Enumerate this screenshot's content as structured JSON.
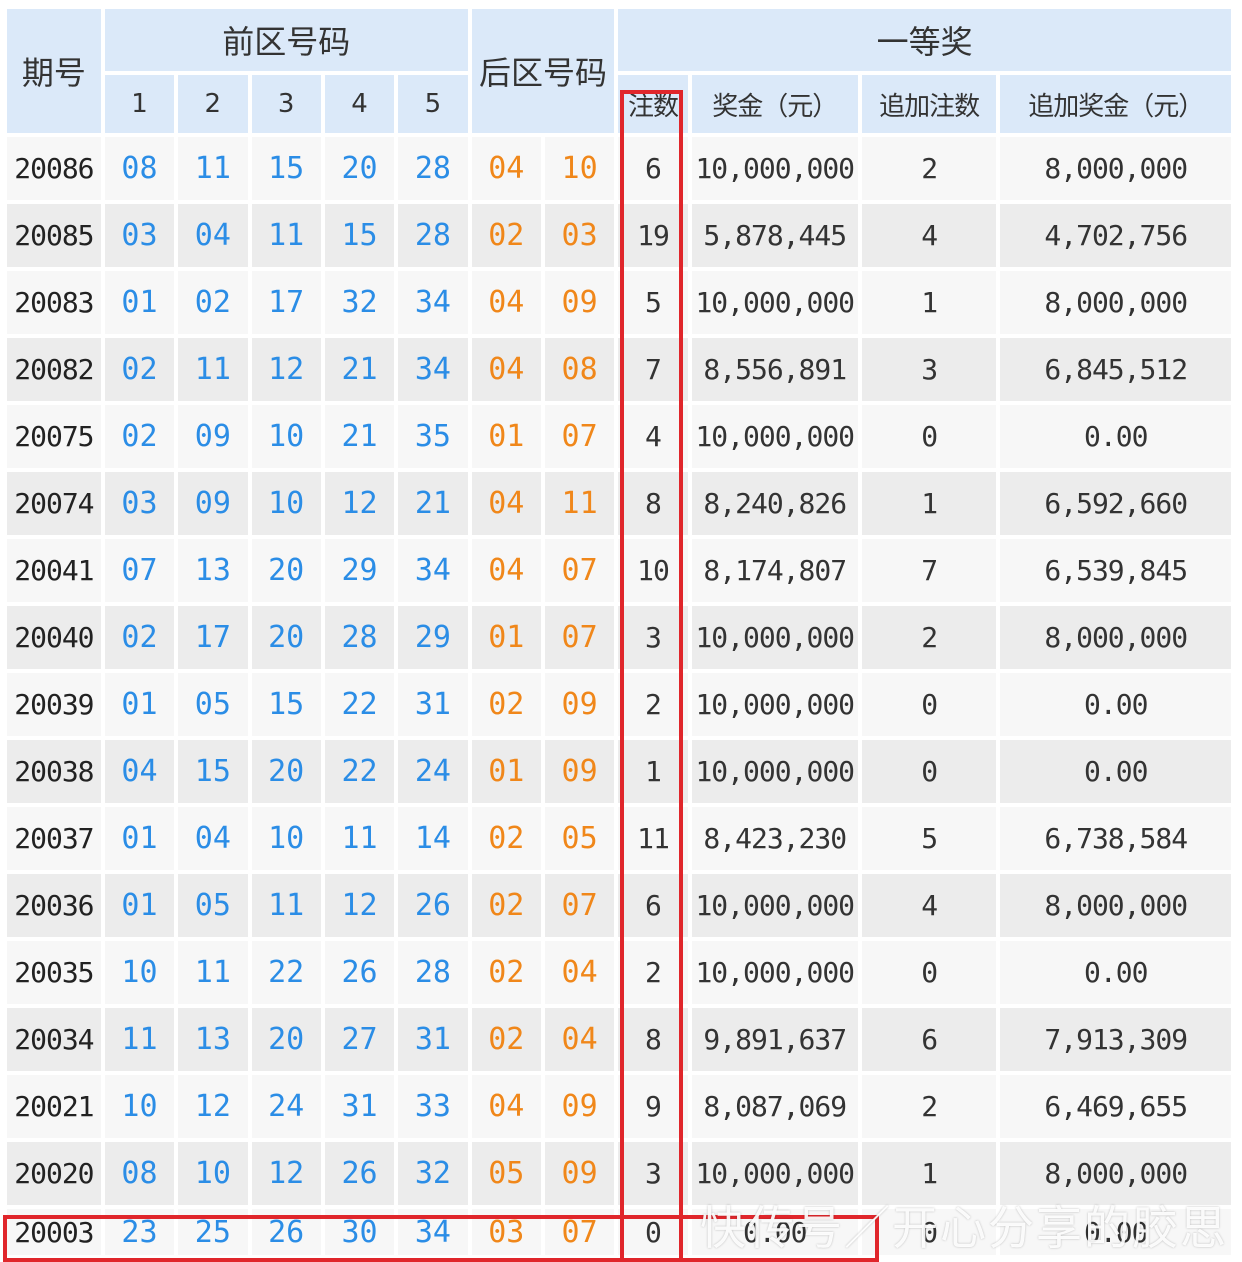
{
  "header": {
    "issue_label": "期号",
    "front_label": "前区号码",
    "back_label": "后区号码",
    "first_prize_label": "一等奖",
    "front_positions": [
      "1",
      "2",
      "3",
      "4",
      "5"
    ],
    "prize_cols": [
      "注数",
      "奖金（元）",
      "追加注数",
      "追加奖金（元）"
    ]
  },
  "rows": [
    {
      "issue": "20086",
      "front": [
        "08",
        "11",
        "15",
        "20",
        "28"
      ],
      "back": [
        "04",
        "10"
      ],
      "count": "6",
      "prize": "10,000,000",
      "extra_count": "2",
      "extra_prize": "8,000,000"
    },
    {
      "issue": "20085",
      "front": [
        "03",
        "04",
        "11",
        "15",
        "28"
      ],
      "back": [
        "02",
        "03"
      ],
      "count": "19",
      "prize": "5,878,445",
      "extra_count": "4",
      "extra_prize": "4,702,756"
    },
    {
      "issue": "20083",
      "front": [
        "01",
        "02",
        "17",
        "32",
        "34"
      ],
      "back": [
        "04",
        "09"
      ],
      "count": "5",
      "prize": "10,000,000",
      "extra_count": "1",
      "extra_prize": "8,000,000"
    },
    {
      "issue": "20082",
      "front": [
        "02",
        "11",
        "12",
        "21",
        "34"
      ],
      "back": [
        "04",
        "08"
      ],
      "count": "7",
      "prize": "8,556,891",
      "extra_count": "3",
      "extra_prize": "6,845,512"
    },
    {
      "issue": "20075",
      "front": [
        "02",
        "09",
        "10",
        "21",
        "35"
      ],
      "back": [
        "01",
        "07"
      ],
      "count": "4",
      "prize": "10,000,000",
      "extra_count": "0",
      "extra_prize": "0.00"
    },
    {
      "issue": "20074",
      "front": [
        "03",
        "09",
        "10",
        "12",
        "21"
      ],
      "back": [
        "04",
        "11"
      ],
      "count": "8",
      "prize": "8,240,826",
      "extra_count": "1",
      "extra_prize": "6,592,660"
    },
    {
      "issue": "20041",
      "front": [
        "07",
        "13",
        "20",
        "29",
        "34"
      ],
      "back": [
        "04",
        "07"
      ],
      "count": "10",
      "prize": "8,174,807",
      "extra_count": "7",
      "extra_prize": "6,539,845"
    },
    {
      "issue": "20040",
      "front": [
        "02",
        "17",
        "20",
        "28",
        "29"
      ],
      "back": [
        "01",
        "07"
      ],
      "count": "3",
      "prize": "10,000,000",
      "extra_count": "2",
      "extra_prize": "8,000,000"
    },
    {
      "issue": "20039",
      "front": [
        "01",
        "05",
        "15",
        "22",
        "31"
      ],
      "back": [
        "02",
        "09"
      ],
      "count": "2",
      "prize": "10,000,000",
      "extra_count": "0",
      "extra_prize": "0.00"
    },
    {
      "issue": "20038",
      "front": [
        "04",
        "15",
        "20",
        "22",
        "24"
      ],
      "back": [
        "01",
        "09"
      ],
      "count": "1",
      "prize": "10,000,000",
      "extra_count": "0",
      "extra_prize": "0.00"
    },
    {
      "issue": "20037",
      "front": [
        "01",
        "04",
        "10",
        "11",
        "14"
      ],
      "back": [
        "02",
        "05"
      ],
      "count": "11",
      "prize": "8,423,230",
      "extra_count": "5",
      "extra_prize": "6,738,584"
    },
    {
      "issue": "20036",
      "front": [
        "01",
        "05",
        "11",
        "12",
        "26"
      ],
      "back": [
        "02",
        "07"
      ],
      "count": "6",
      "prize": "10,000,000",
      "extra_count": "4",
      "extra_prize": "8,000,000"
    },
    {
      "issue": "20035",
      "front": [
        "10",
        "11",
        "22",
        "26",
        "28"
      ],
      "back": [
        "02",
        "04"
      ],
      "count": "2",
      "prize": "10,000,000",
      "extra_count": "0",
      "extra_prize": "0.00"
    },
    {
      "issue": "20034",
      "front": [
        "11",
        "13",
        "20",
        "27",
        "31"
      ],
      "back": [
        "02",
        "04"
      ],
      "count": "8",
      "prize": "9,891,637",
      "extra_count": "6",
      "extra_prize": "7,913,309"
    },
    {
      "issue": "20021",
      "front": [
        "10",
        "12",
        "24",
        "31",
        "33"
      ],
      "back": [
        "04",
        "09"
      ],
      "count": "9",
      "prize": "8,087,069",
      "extra_count": "2",
      "extra_prize": "6,469,655"
    },
    {
      "issue": "20020",
      "front": [
        "08",
        "10",
        "12",
        "26",
        "32"
      ],
      "back": [
        "05",
        "09"
      ],
      "count": "3",
      "prize": "10,000,000",
      "extra_count": "1",
      "extra_prize": "8,000,000"
    },
    {
      "issue": "20003",
      "front": [
        "23",
        "25",
        "26",
        "30",
        "34"
      ],
      "back": [
        "03",
        "07"
      ],
      "count": "0",
      "prize": "0.00",
      "extra_count": "0",
      "extra_prize": "0.00"
    }
  ],
  "watermark": "快传号／开心分享的胶思",
  "colors": {
    "front_number": "#2b8de6",
    "back_number": "#f0871a",
    "header_bg": "#dbe9f9",
    "highlight_box": "#e0262b"
  }
}
